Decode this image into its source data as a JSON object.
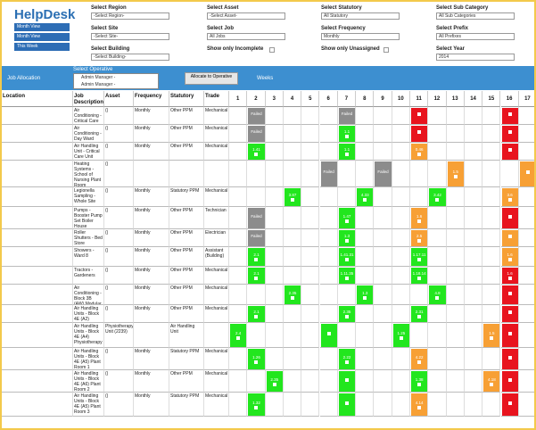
{
  "header": {
    "logo": "HelpDesk",
    "buttons": [
      "Month View",
      "Month View",
      "This Week"
    ]
  },
  "filters": [
    {
      "label": "Select Region",
      "value": "-Select Region-"
    },
    {
      "label": "Select Site",
      "value": "-Select Site-"
    },
    {
      "label": "Select Building",
      "value": "-Select Building-"
    },
    {
      "label": "Select Asset",
      "value": "-Select Asset-"
    },
    {
      "label": "Select Job",
      "value": "All Jobs"
    },
    {
      "label": "Show only Incomplete"
    },
    {
      "label": "Select Statutory",
      "value": "All Statutory"
    },
    {
      "label": "Select Frequency",
      "value": "Monthly"
    },
    {
      "label": "Show only Unassigned"
    },
    {
      "label": "Select Sub Category",
      "value": "All Sub Categories"
    },
    {
      "label": "Select Prefix",
      "value": "All Prefixes"
    },
    {
      "label": "Select Year",
      "value": "2014"
    }
  ],
  "toolbar": {
    "job_allocation": "Job Allocation",
    "select_operative": "Select Operative",
    "operatives": [
      "Admin Manager -",
      "Admin Manager -"
    ],
    "allocate": "Allocate to Operative",
    "weeks": "Weeks"
  },
  "table": {
    "columns": [
      "Location",
      "Job Description",
      "Asset",
      "Frequency",
      "Statutory",
      "Trade"
    ],
    "weeks": [
      1,
      2,
      3,
      4,
      5,
      6,
      7,
      8,
      9,
      10,
      11,
      12,
      13,
      14,
      15,
      16,
      17
    ],
    "rows": [
      {
        "job": "Air Conditioning - Critical Care Unit",
        "asset": "()",
        "frequency": "Monthly",
        "statutory": "Other PPM",
        "trade": "Mechanical",
        "cells": [
          {
            "week": 2,
            "status": "failed",
            "label": "Failed"
          },
          {
            "week": 7,
            "status": "failed",
            "label": "Failed"
          },
          {
            "week": 11,
            "status": "overdue"
          },
          {
            "week": 16,
            "status": "overdue"
          }
        ]
      },
      {
        "job": "Air Conditioning - Day Ward Extention",
        "asset": "()",
        "frequency": "Monthly",
        "statutory": "Other PPM",
        "trade": "Mechanical",
        "cells": [
          {
            "week": 2,
            "status": "failed",
            "label": "Failed"
          },
          {
            "week": 7,
            "status": "done",
            "label": "1.1"
          },
          {
            "week": 11,
            "status": "overdue"
          },
          {
            "week": 16,
            "status": "overdue"
          }
        ]
      },
      {
        "job": "Air Handling Unit - Critical Care Unit",
        "asset": "()",
        "frequency": "Monthly",
        "statutory": "Other PPM",
        "trade": "Mechanical",
        "cells": [
          {
            "week": 2,
            "status": "done",
            "label": "1.41"
          },
          {
            "week": 7,
            "status": "done",
            "label": "1.1"
          },
          {
            "week": 11,
            "status": "pending",
            "label": "0.46"
          },
          {
            "week": 16,
            "status": "overdue"
          }
        ]
      },
      {
        "job": "Heating Systems - School of Nursing Plant Room",
        "asset": "()",
        "cells": [
          {
            "week": 6,
            "status": "failed",
            "label": "Failed"
          },
          {
            "week": 9,
            "status": "failed",
            "label": "Failed"
          },
          {
            "week": 13,
            "status": "pending",
            "label": "1.5"
          },
          {
            "week": 17,
            "status": "pending"
          }
        ]
      },
      {
        "job": "Legionella Sampling - Whole Site",
        "asset": "()",
        "frequency": "Monthly",
        "statutory": "Statutory PPM",
        "trade": "Mechanical",
        "cells": [
          {
            "week": 4,
            "status": "done",
            "label": "3.87"
          },
          {
            "week": 8,
            "status": "done",
            "label": "4.33"
          },
          {
            "week": 12,
            "status": "done",
            "label": "3.42"
          },
          {
            "week": 16,
            "status": "pending",
            "label": "3.6"
          }
        ]
      },
      {
        "job": "Pumps - Booster Pump Set Boiler House",
        "asset": "()",
        "frequency": "Monthly",
        "statutory": "Other PPM",
        "trade": "Technician",
        "cells": [
          {
            "week": 2,
            "status": "failed",
            "label": "Failed"
          },
          {
            "week": 7,
            "status": "done",
            "label": "1.47"
          },
          {
            "week": 11,
            "status": "pending",
            "label": "1.6"
          },
          {
            "week": 16,
            "status": "overdue"
          }
        ]
      },
      {
        "job": "Roller Shutters - Bed Store",
        "asset": "()",
        "frequency": "Monthly",
        "statutory": "Other PPM",
        "trade": "Electrician",
        "cells": [
          {
            "week": 2,
            "status": "failed",
            "label": "Failed"
          },
          {
            "week": 7,
            "status": "done",
            "label": "1.3"
          },
          {
            "week": 11,
            "status": "pending",
            "label": "2.5"
          },
          {
            "week": 16,
            "status": "pending"
          }
        ]
      },
      {
        "job": "Showers - Ward 8",
        "asset": "()",
        "frequency": "Monthly",
        "statutory": "Other PPM",
        "trade": "Assistant (Building)",
        "cells": [
          {
            "week": 2,
            "status": "done",
            "label": "2.1"
          },
          {
            "week": 7,
            "status": "done",
            "label": "1.41.31"
          },
          {
            "week": 11,
            "status": "done",
            "label": "1.17.11"
          },
          {
            "week": 16,
            "status": "pending",
            "label": "1.6"
          }
        ]
      },
      {
        "job": "Tractors - Gardeners",
        "asset": "()",
        "frequency": "Monthly",
        "statutory": "Other PPM",
        "trade": "Mechanical",
        "cells": [
          {
            "week": 2,
            "status": "done",
            "label": "2.1"
          },
          {
            "week": 7,
            "status": "done",
            "label": "1.11.35"
          },
          {
            "week": 11,
            "status": "done",
            "label": "1.18.14"
          },
          {
            "week": 16,
            "status": "overdue",
            "label": "1.6"
          }
        ]
      },
      {
        "job": "Air Conditioning - Block 3B (AW) Modular wards",
        "asset": "()",
        "frequency": "Monthly",
        "statutory": "Other PPM",
        "trade": "Mechanical",
        "cells": [
          {
            "week": 4,
            "status": "done",
            "label": "2.35"
          },
          {
            "week": 8,
            "status": "done",
            "label": "1.3"
          },
          {
            "week": 12,
            "status": "done",
            "label": "4.8"
          },
          {
            "week": 16,
            "status": "overdue"
          }
        ]
      },
      {
        "job": "Air Handling Units - Block 4E (A2) Physiotherapy Ground Floor",
        "asset": "()",
        "frequency": "Monthly",
        "statutory": "Other PPM",
        "trade": "Mechanical",
        "cells": [
          {
            "week": 2,
            "status": "done",
            "label": "2.1"
          },
          {
            "week": 7,
            "status": "done",
            "label": "2.35"
          },
          {
            "week": 11,
            "status": "done",
            "label": "2.31"
          },
          {
            "week": 16,
            "status": "overdue"
          }
        ]
      },
      {
        "job": "Air Handling Units - Block 4E (A4) Physiotherapy",
        "asset": "Physiotherapy Unit (2239)",
        "statutory": "Air Handling Unit",
        "cells": [
          {
            "week": 1,
            "status": "done",
            "label": "2.4"
          },
          {
            "week": 6,
            "status": "done"
          },
          {
            "week": 10,
            "status": "done",
            "label": "1.25"
          },
          {
            "week": 15,
            "status": "pending",
            "label": "1.5"
          },
          {
            "week": 16,
            "status": "overdue"
          }
        ]
      },
      {
        "job": "Air Handling Units - Block 4E (A5) Plant Room 1",
        "asset": "()",
        "frequency": "Monthly",
        "statutory": "Statutory PPM",
        "trade": "Mechanical",
        "cells": [
          {
            "week": 2,
            "status": "done",
            "label": "1.26"
          },
          {
            "week": 7,
            "status": "done",
            "label": "2.22"
          },
          {
            "week": 11,
            "status": "pending",
            "label": "4.22"
          },
          {
            "week": 16,
            "status": "overdue"
          }
        ]
      },
      {
        "job": "Air Handling Units - Block 4E (A6) Plant Room 2",
        "asset": "()",
        "frequency": "Monthly",
        "statutory": "Other PPM",
        "trade": "Mechanical",
        "cells": [
          {
            "week": 3,
            "status": "done",
            "label": "2.35"
          },
          {
            "week": 7,
            "status": "done"
          },
          {
            "week": 11,
            "status": "done",
            "label": "1.38"
          },
          {
            "week": 15,
            "status": "pending",
            "label": "4.18"
          },
          {
            "week": 16,
            "status": "overdue"
          }
        ]
      },
      {
        "job": "Air Handling Units - Block 4E (A5) Plant Room 3",
        "asset": "()",
        "frequency": "Monthly",
        "statutory": "Statutory PPM",
        "trade": "Mechanical",
        "cells": [
          {
            "week": 2,
            "status": "done",
            "label": "1.32"
          },
          {
            "week": 7,
            "status": "done"
          },
          {
            "week": 11,
            "status": "pending",
            "label": "4.14"
          },
          {
            "week": 16,
            "status": "overdue"
          }
        ]
      }
    ]
  }
}
